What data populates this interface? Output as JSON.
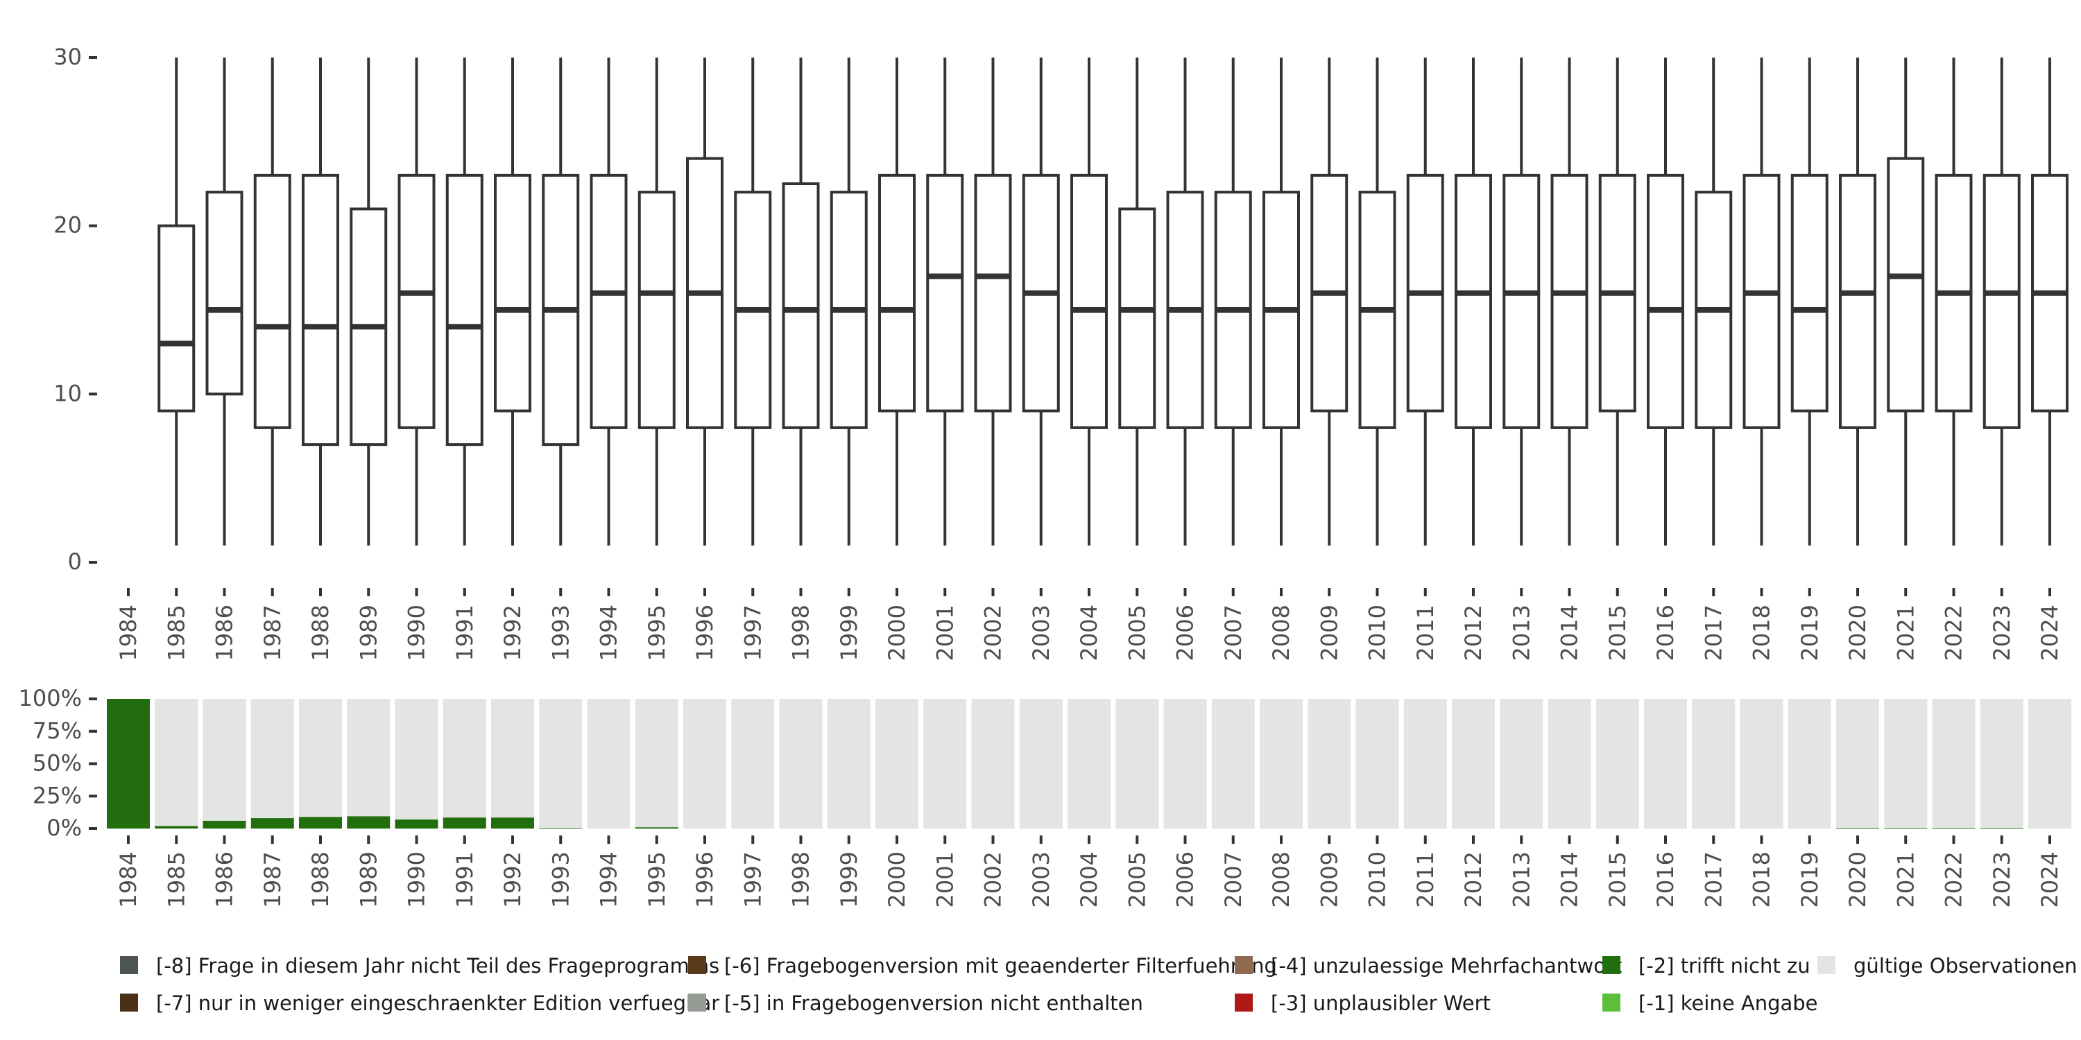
{
  "chart_data": [
    {
      "type": "boxplot",
      "x": [
        "1984",
        "1985",
        "1986",
        "1987",
        "1988",
        "1989",
        "1990",
        "1991",
        "1992",
        "1993",
        "1994",
        "1995",
        "1996",
        "1997",
        "1998",
        "1999",
        "2000",
        "2001",
        "2002",
        "2003",
        "2004",
        "2005",
        "2006",
        "2007",
        "2008",
        "2009",
        "2010",
        "2011",
        "2012",
        "2013",
        "2014",
        "2015",
        "2016",
        "2017",
        "2018",
        "2019",
        "2020",
        "2021",
        "2022",
        "2023",
        "2024"
      ],
      "ylim": [
        0,
        30
      ],
      "yticks": [
        0,
        10,
        20,
        30
      ],
      "boxes": [
        null,
        {
          "min": 1,
          "q1": 9,
          "median": 13,
          "q3": 20,
          "max": 30
        },
        {
          "min": 1,
          "q1": 10,
          "median": 15,
          "q3": 22,
          "max": 30
        },
        {
          "min": 1,
          "q1": 8,
          "median": 14,
          "q3": 23,
          "max": 30
        },
        {
          "min": 1,
          "q1": 7,
          "median": 14,
          "q3": 23,
          "max": 30
        },
        {
          "min": 1,
          "q1": 7,
          "median": 14,
          "q3": 21,
          "max": 30
        },
        {
          "min": 1,
          "q1": 8,
          "median": 16,
          "q3": 23,
          "max": 30
        },
        {
          "min": 1,
          "q1": 7,
          "median": 14,
          "q3": 23,
          "max": 30
        },
        {
          "min": 1,
          "q1": 9,
          "median": 15,
          "q3": 23,
          "max": 30
        },
        {
          "min": 1,
          "q1": 7,
          "median": 15,
          "q3": 23,
          "max": 30
        },
        {
          "min": 1,
          "q1": 8,
          "median": 16,
          "q3": 23,
          "max": 30
        },
        {
          "min": 1,
          "q1": 8,
          "median": 16,
          "q3": 22,
          "max": 30
        },
        {
          "min": 1,
          "q1": 8,
          "median": 16,
          "q3": 24,
          "max": 30
        },
        {
          "min": 1,
          "q1": 8,
          "median": 15,
          "q3": 22,
          "max": 30
        },
        {
          "min": 1,
          "q1": 8,
          "median": 15,
          "q3": 22.5,
          "max": 30
        },
        {
          "min": 1,
          "q1": 8,
          "median": 15,
          "q3": 22,
          "max": 30
        },
        {
          "min": 1,
          "q1": 9,
          "median": 15,
          "q3": 23,
          "max": 30
        },
        {
          "min": 1,
          "q1": 9,
          "median": 17,
          "q3": 23,
          "max": 30
        },
        {
          "min": 1,
          "q1": 9,
          "median": 17,
          "q3": 23,
          "max": 30
        },
        {
          "min": 1,
          "q1": 9,
          "median": 16,
          "q3": 23,
          "max": 30
        },
        {
          "min": 1,
          "q1": 8,
          "median": 15,
          "q3": 23,
          "max": 30
        },
        {
          "min": 1,
          "q1": 8,
          "median": 15,
          "q3": 21,
          "max": 30
        },
        {
          "min": 1,
          "q1": 8,
          "median": 15,
          "q3": 22,
          "max": 30
        },
        {
          "min": 1,
          "q1": 8,
          "median": 15,
          "q3": 22,
          "max": 30
        },
        {
          "min": 1,
          "q1": 8,
          "median": 15,
          "q3": 22,
          "max": 30
        },
        {
          "min": 1,
          "q1": 9,
          "median": 16,
          "q3": 23,
          "max": 30
        },
        {
          "min": 1,
          "q1": 8,
          "median": 15,
          "q3": 22,
          "max": 30
        },
        {
          "min": 1,
          "q1": 9,
          "median": 16,
          "q3": 23,
          "max": 30
        },
        {
          "min": 1,
          "q1": 8,
          "median": 16,
          "q3": 23,
          "max": 30
        },
        {
          "min": 1,
          "q1": 8,
          "median": 16,
          "q3": 23,
          "max": 30
        },
        {
          "min": 1,
          "q1": 8,
          "median": 16,
          "q3": 23,
          "max": 30
        },
        {
          "min": 1,
          "q1": 9,
          "median": 16,
          "q3": 23,
          "max": 30
        },
        {
          "min": 1,
          "q1": 8,
          "median": 15,
          "q3": 23,
          "max": 30
        },
        {
          "min": 1,
          "q1": 8,
          "median": 15,
          "q3": 22,
          "max": 30
        },
        {
          "min": 1,
          "q1": 8,
          "median": 16,
          "q3": 23,
          "max": 30
        },
        {
          "min": 1,
          "q1": 9,
          "median": 15,
          "q3": 23,
          "max": 30
        },
        {
          "min": 1,
          "q1": 8,
          "median": 16,
          "q3": 23,
          "max": 30
        },
        {
          "min": 1,
          "q1": 9,
          "median": 17,
          "q3": 24,
          "max": 30
        },
        {
          "min": 1,
          "q1": 9,
          "median": 16,
          "q3": 23,
          "max": 30
        },
        {
          "min": 1,
          "q1": 8,
          "median": 16,
          "q3": 23,
          "max": 30
        },
        {
          "min": 1,
          "q1": 9,
          "median": 16,
          "q3": 23,
          "max": 30
        }
      ],
      "colors": {
        "box_stroke": "#333333",
        "box_fill": "#ffffff"
      }
    },
    {
      "type": "bar",
      "stacked": true,
      "percent": true,
      "x": [
        "1984",
        "1985",
        "1986",
        "1987",
        "1988",
        "1989",
        "1990",
        "1991",
        "1992",
        "1993",
        "1994",
        "1995",
        "1996",
        "1997",
        "1998",
        "1999",
        "2000",
        "2001",
        "2002",
        "2003",
        "2004",
        "2005",
        "2006",
        "2007",
        "2008",
        "2009",
        "2010",
        "2011",
        "2012",
        "2013",
        "2014",
        "2015",
        "2016",
        "2017",
        "2018",
        "2019",
        "2020",
        "2021",
        "2022",
        "2023",
        "2024"
      ],
      "yticks": [
        "0%",
        "25%",
        "50%",
        "75%",
        "100%"
      ],
      "series": [
        {
          "name": "[-2] trifft nicht zu",
          "color": "#226e0f",
          "values": [
            100,
            2,
            6,
            8,
            9,
            9.5,
            7,
            8.5,
            8.5,
            0.5,
            0,
            1,
            0,
            0,
            0,
            0,
            0,
            0,
            0,
            0,
            0,
            0,
            0,
            0,
            0,
            0,
            0,
            0,
            0,
            0,
            0,
            0,
            0,
            0,
            0,
            0,
            0.5,
            0.5,
            0.5,
            0.5,
            0
          ]
        },
        {
          "name": "gültige Observationen",
          "color": "#e2e5e1",
          "values": [
            0,
            98,
            94,
            92,
            91,
            90.5,
            93,
            91.5,
            91.5,
            99.5,
            100,
            99,
            100,
            100,
            100,
            100,
            100,
            100,
            100,
            100,
            100,
            100,
            100,
            100,
            100,
            100,
            100,
            100,
            100,
            100,
            100,
            100,
            100,
            100,
            100,
            100,
            99.5,
            99.5,
            99.5,
            99.5,
            100
          ]
        }
      ]
    }
  ],
  "legend": {
    "position": "bottom",
    "items": [
      {
        "label": "[-8] Frage in diesem Jahr nicht Teil des Frageprogramms",
        "color": "#4d5550"
      },
      {
        "label": "[-7] nur in weniger eingeschraenkter Edition verfuegbar",
        "color": "#4a3015"
      },
      {
        "label": "[-6] Fragebogenversion mit geaenderter Filterfuehrung",
        "color": "#5a3a18"
      },
      {
        "label": "[-5] in Fragebogenversion nicht enthalten",
        "color": "#959a93"
      },
      {
        "label": "[-4] unzulaessige Mehrfachantwort",
        "color": "#8f6a50"
      },
      {
        "label": "[-3] unplausibler Wert",
        "color": "#b01818"
      },
      {
        "label": "[-2] trifft nicht zu",
        "color": "#226e0f"
      },
      {
        "label": "[-1] keine Angabe",
        "color": "#5cbf3c"
      },
      {
        "label": "gültige Observationen",
        "color": "#e2e5e1"
      }
    ]
  }
}
